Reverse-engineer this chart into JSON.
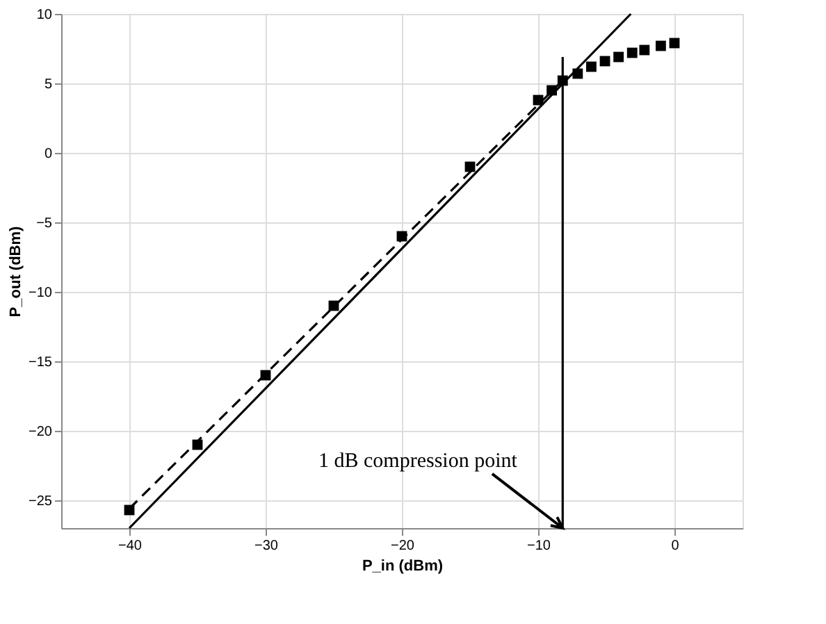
{
  "chart_data": {
    "type": "scatter",
    "xlabel": "P_in (dBm)",
    "ylabel": "P_out (dBm)",
    "xlim": [
      -45,
      5
    ],
    "xticks": [
      -40,
      -30,
      -20,
      -10,
      0
    ],
    "ylim": [
      -27,
      10
    ],
    "yticks": [
      -25,
      -20,
      -15,
      -10,
      -5,
      0,
      5,
      10
    ],
    "grid": true,
    "marker": "square",
    "series": [
      {
        "type": "scatter",
        "color": "#000000",
        "x": [
          -40,
          -35,
          -30,
          -25,
          -20,
          -15,
          -10,
          -9,
          -8.2,
          -7.1,
          -6.1,
          -5.1,
          -4.1,
          -3.1,
          -2.2,
          -1,
          0
        ],
        "values": [
          -25.7,
          -21,
          -16,
          -11,
          -6,
          -1,
          3.8,
          4.5,
          5.2,
          5.7,
          6.2,
          6.6,
          6.9,
          7.2,
          7.4,
          7.7,
          7.9
        ]
      },
      {
        "type": "line",
        "color": "#000000",
        "line_style": "dashed",
        "marker": "none",
        "x": [
          -40,
          -8
        ],
        "values": [
          -25.6,
          5.4
        ]
      },
      {
        "type": "line",
        "color": "#000000",
        "line_style": "solid",
        "marker": "none",
        "x": [
          -40,
          -3.2
        ],
        "values": [
          -27,
          10
        ]
      },
      {
        "type": "line",
        "color": "#000000",
        "line_style": "solid",
        "marker": "none",
        "x": [
          -8.2,
          -8.2
        ],
        "values": [
          -27,
          6.9
        ]
      }
    ],
    "annotations": [
      {
        "text": "1 dB compression point",
        "x": -8.2,
        "y": -27
      }
    ]
  }
}
